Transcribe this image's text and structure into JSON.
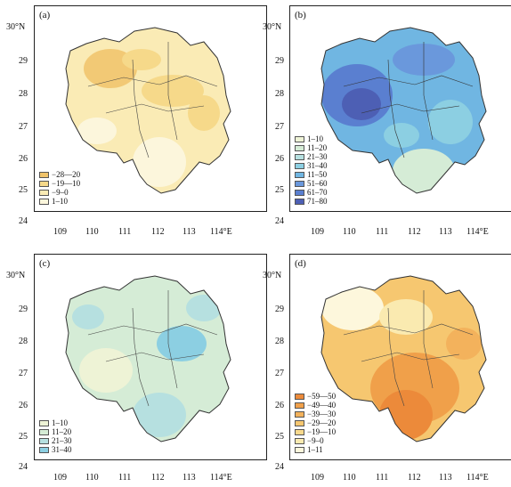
{
  "axes": {
    "x_ticks": [
      "109",
      "110",
      "111",
      "112",
      "113",
      "114°E"
    ],
    "y_ticks": [
      "30°N",
      "29",
      "28",
      "27",
      "26",
      "25",
      "24"
    ]
  },
  "panels": [
    {
      "label": "(a)",
      "legend": [
        {
          "label": "−28—20",
          "color": "#f0c36a"
        },
        {
          "label": "−19—10",
          "color": "#f6d98a"
        },
        {
          "label": "−9–0",
          "color": "#faebb5"
        },
        {
          "label": "1–10",
          "color": "#fcf6dc"
        }
      ]
    },
    {
      "label": "(b)",
      "legend": [
        {
          "label": "1–10",
          "color": "#eef3d6"
        },
        {
          "label": "11–20",
          "color": "#d5ecd6"
        },
        {
          "label": "21–30",
          "color": "#b6e0e0"
        },
        {
          "label": "31–40",
          "color": "#8ccfe2"
        },
        {
          "label": "11–50",
          "color": "#70b6e2"
        },
        {
          "label": "51–60",
          "color": "#6a98dc"
        },
        {
          "label": "61–70",
          "color": "#5a7fd0"
        },
        {
          "label": "71–80",
          "color": "#4d5fb4"
        }
      ]
    },
    {
      "label": "(c)",
      "legend": [
        {
          "label": "1–10",
          "color": "#eef3d6"
        },
        {
          "label": "11–20",
          "color": "#d5ecd6"
        },
        {
          "label": "21–30",
          "color": "#b6e0e0"
        },
        {
          "label": "31–40",
          "color": "#8ccfe2"
        }
      ]
    },
    {
      "label": "(d)",
      "legend": [
        {
          "label": "−59—50",
          "color": "#ec8a3a"
        },
        {
          "label": "−49—40",
          "color": "#f0a04a"
        },
        {
          "label": "−39—30",
          "color": "#f3b25c"
        },
        {
          "label": "−29—20",
          "color": "#f6c770"
        },
        {
          "label": "−19—10",
          "color": "#f8d98c"
        },
        {
          "label": "−9–0",
          "color": "#faeab0"
        },
        {
          "label": "1–11",
          "color": "#fdf7dc"
        }
      ]
    }
  ]
}
